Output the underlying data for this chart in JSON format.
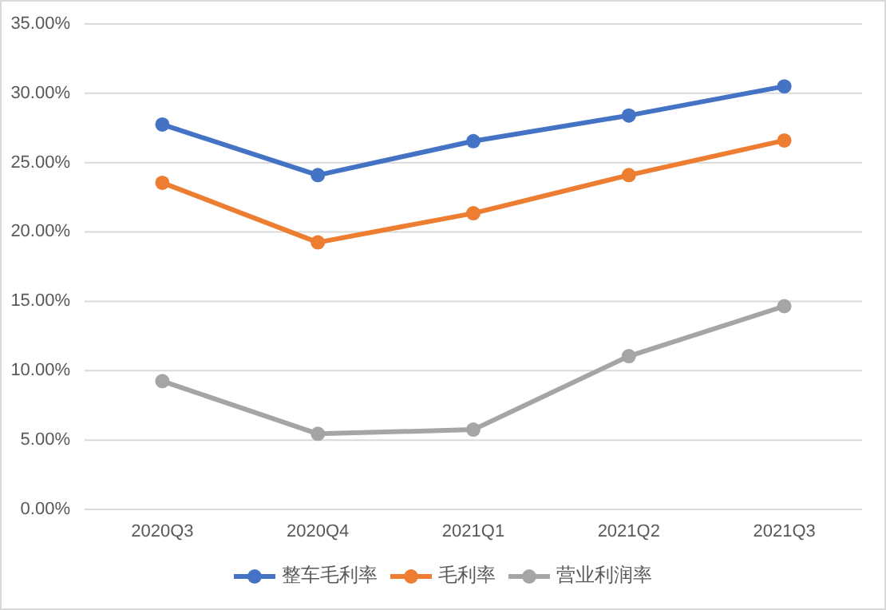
{
  "chart_data": {
    "type": "line",
    "categories": [
      "2020Q3",
      "2020Q4",
      "2021Q1",
      "2021Q2",
      "2021Q3"
    ],
    "series": [
      {
        "name": "整车毛利率",
        "color": "#4472c4",
        "values": [
          27.75,
          24.1,
          26.55,
          28.4,
          30.5
        ]
      },
      {
        "name": "毛利率",
        "color": "#ed7d31",
        "values": [
          23.55,
          19.25,
          21.35,
          24.1,
          26.6
        ]
      },
      {
        "name": "营业利润率",
        "color": "#a5a5a5",
        "values": [
          9.25,
          5.45,
          5.75,
          11.05,
          14.65
        ]
      }
    ],
    "ylim": [
      0,
      35
    ],
    "yticks": [
      {
        "value": 0,
        "label": "0.00%"
      },
      {
        "value": 5,
        "label": "5.00%"
      },
      {
        "value": 10,
        "label": "10.00%"
      },
      {
        "value": 15,
        "label": "15.00%"
      },
      {
        "value": 20,
        "label": "20.00%"
      },
      {
        "value": 25,
        "label": "25.00%"
      },
      {
        "value": 30,
        "label": "30.00%"
      },
      {
        "value": 35,
        "label": "35.00%"
      }
    ],
    "grid": "y",
    "legend": "bottom",
    "marker": "circle",
    "line_style": "solid"
  }
}
